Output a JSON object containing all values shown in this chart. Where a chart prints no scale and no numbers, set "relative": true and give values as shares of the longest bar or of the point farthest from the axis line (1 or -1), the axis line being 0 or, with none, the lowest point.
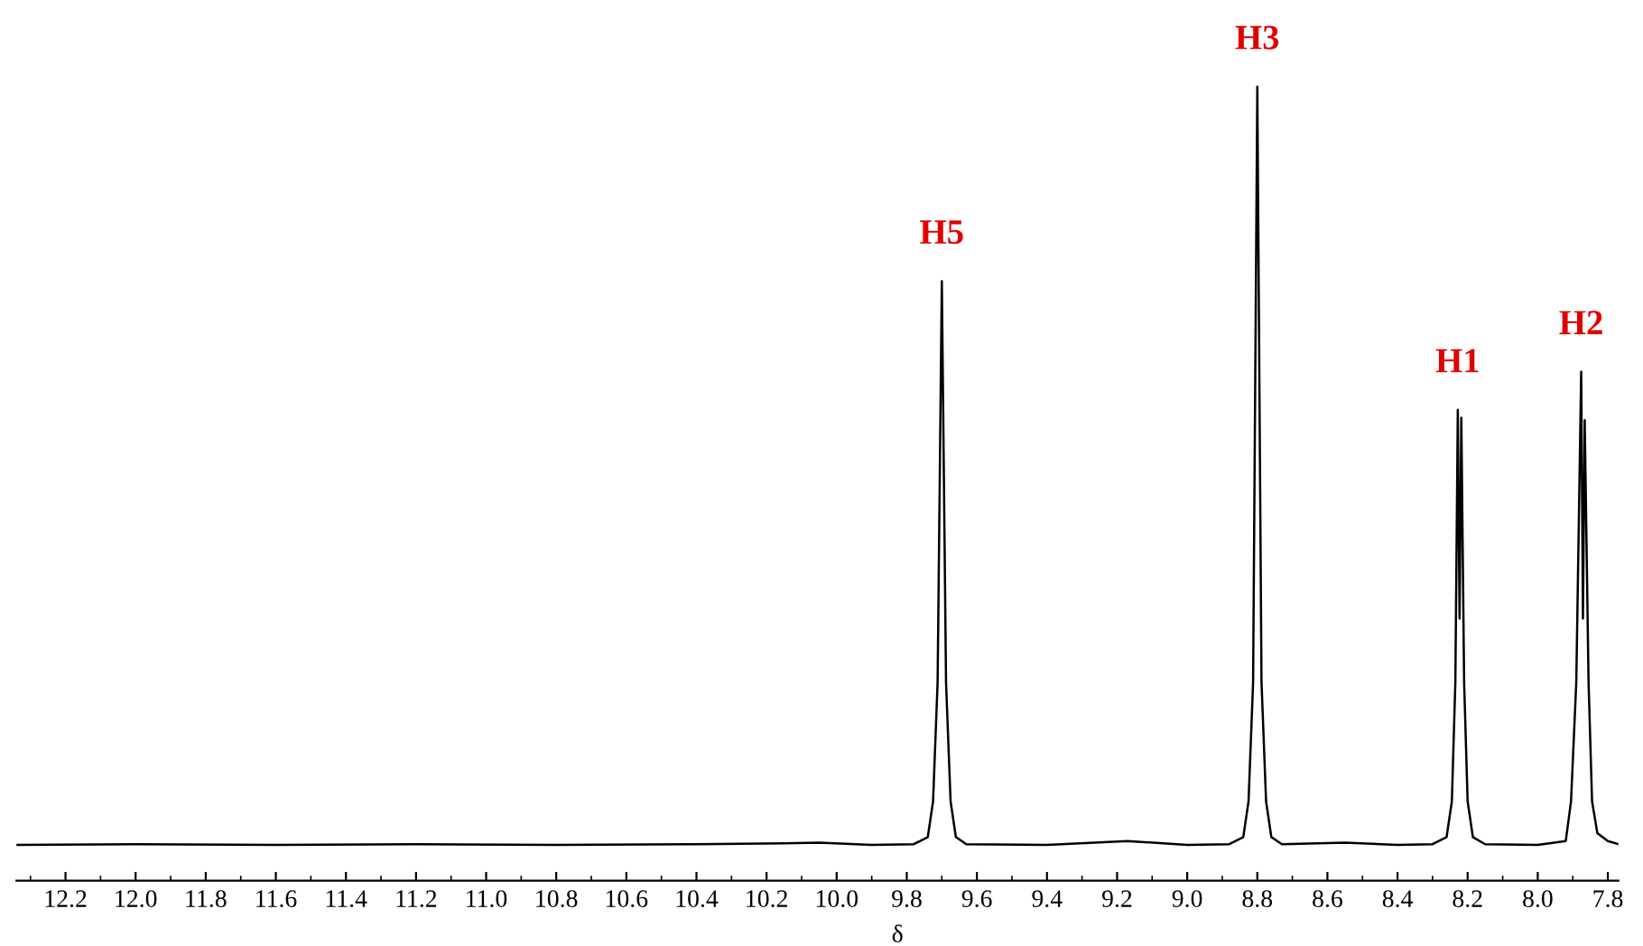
{
  "chart_data": {
    "type": "line",
    "relative": true,
    "xlabel": "δ",
    "x": [
      12.34,
      12.0,
      11.6,
      11.2,
      10.8,
      10.4,
      10.15,
      10.05,
      9.9,
      9.78,
      9.74,
      9.725,
      9.712,
      9.7,
      9.688,
      9.675,
      9.66,
      9.63,
      9.4,
      9.17,
      9.0,
      8.88,
      8.84,
      8.825,
      8.812,
      8.8,
      8.788,
      8.775,
      8.76,
      8.73,
      8.55,
      8.4,
      8.3,
      8.26,
      8.245,
      8.235,
      8.228,
      8.223,
      8.218,
      8.21,
      8.2,
      8.185,
      8.15,
      8.0,
      7.92,
      7.905,
      7.89,
      7.876,
      7.871,
      7.866,
      7.855,
      7.845,
      7.83,
      7.8,
      7.77
    ],
    "series": [
      {
        "color": "#000000",
        "values": [
          0.045,
          0.046,
          0.045,
          0.046,
          0.045,
          0.046,
          0.047,
          0.048,
          0.045,
          0.046,
          0.055,
          0.1,
          0.25,
          0.755,
          0.25,
          0.1,
          0.055,
          0.046,
          0.045,
          0.05,
          0.045,
          0.046,
          0.055,
          0.1,
          0.25,
          1.0,
          0.25,
          0.1,
          0.055,
          0.046,
          0.048,
          0.045,
          0.046,
          0.055,
          0.1,
          0.25,
          0.593,
          0.33,
          0.583,
          0.25,
          0.1,
          0.055,
          0.046,
          0.045,
          0.05,
          0.1,
          0.25,
          0.641,
          0.33,
          0.58,
          0.25,
          0.1,
          0.06,
          0.05,
          0.046
        ]
      }
    ],
    "xlim": [
      12.34,
      7.77
    ],
    "xticks": [
      12.2,
      {
        "value": 12,
        "label": "12.0"
      },
      11.8,
      11.6,
      11.4,
      11.2,
      {
        "value": 11,
        "label": "11.0"
      },
      10.8,
      10.6,
      10.4,
      10.2,
      {
        "value": 10,
        "label": "10.0"
      },
      9.8,
      9.6,
      9.4,
      9.2,
      {
        "value": 9,
        "label": "9.0"
      },
      8.8,
      8.6,
      8.4,
      8.2,
      {
        "value": 8,
        "label": "8.0"
      },
      7.8
    ],
    "tick_labels": "x",
    "grid": false,
    "legend": false,
    "marker": "none",
    "line_style": "solid",
    "annotations": [
      {
        "text": "H5",
        "x": 9.7,
        "y": 0.755
      },
      {
        "text": "H3",
        "x": 8.8,
        "y": 1.0
      },
      {
        "text": "H1",
        "x": 8.228,
        "y": 0.593
      },
      {
        "text": "H2",
        "x": 7.876,
        "y": 0.641
      }
    ]
  }
}
